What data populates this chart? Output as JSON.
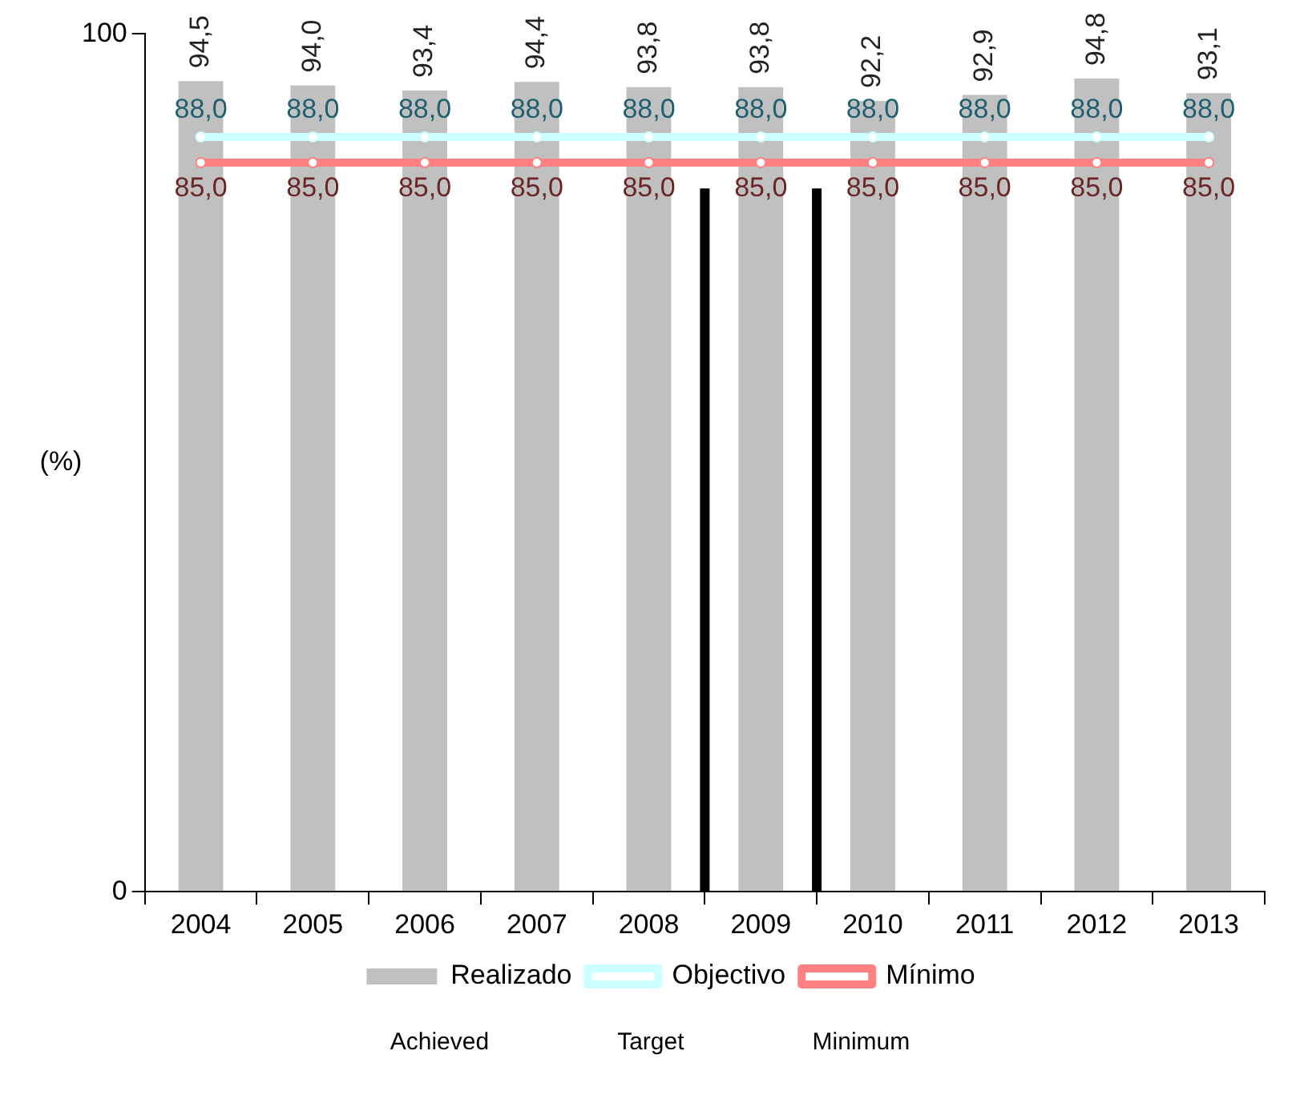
{
  "chart_data": {
    "type": "bar",
    "ylabel": "(%)",
    "x": [
      2004,
      2005,
      2006,
      2007,
      2008,
      2009,
      2010,
      2011,
      2012,
      2013
    ],
    "xlim": [
      2003.5,
      2013.5
    ],
    "xticks": [
      2004,
      2005,
      2006,
      2007,
      2008,
      2009,
      2010,
      2011,
      2012,
      2013
    ],
    "ylim": [
      0,
      100
    ],
    "yticks": [
      0,
      100
    ],
    "series": [
      {
        "name": "Realizado",
        "color": "#c0c0c0",
        "values": [
          94.5,
          94.0,
          93.4,
          94.4,
          93.8,
          93.8,
          92.2,
          92.9,
          94.8,
          93.1
        ],
        "value_labels": [
          "94,5",
          "94,0",
          "93,4",
          "94,4",
          "93,8",
          "93,8",
          "92,2",
          "92,9",
          "94,8",
          "93,1"
        ]
      },
      {
        "name": "Objectivo",
        "type": "line",
        "color": "#ccffff",
        "values": [
          88.0,
          88.0,
          88.0,
          88.0,
          88.0,
          88.0,
          88.0,
          88.0,
          88.0,
          88.0
        ],
        "value_labels": [
          "88,0",
          "88,0",
          "88,0",
          "88,0",
          "88,0",
          "88,0",
          "88,0",
          "88,0",
          "88,0",
          "88,0"
        ]
      },
      {
        "name": "Mínimo",
        "type": "line",
        "color": "#ff8080",
        "values": [
          85.0,
          85.0,
          85.0,
          85.0,
          85.0,
          85.0,
          85.0,
          85.0,
          85.0,
          85.0
        ],
        "value_labels": [
          "85,0",
          "85,0",
          "85,0",
          "85,0",
          "85,0",
          "85,0",
          "85,0",
          "85,0",
          "85,0",
          "85,0"
        ]
      }
    ],
    "ref_lines": [
      {
        "axis": "x",
        "value": 2008.5,
        "color": "#000000"
      },
      {
        "axis": "x",
        "value": 2009.5,
        "color": "#000000"
      }
    ],
    "marker": "circle",
    "line_style": "solid",
    "grid": false,
    "legend": "bottom",
    "annotations": [
      "Achieved",
      "Target",
      "Minimum"
    ]
  }
}
